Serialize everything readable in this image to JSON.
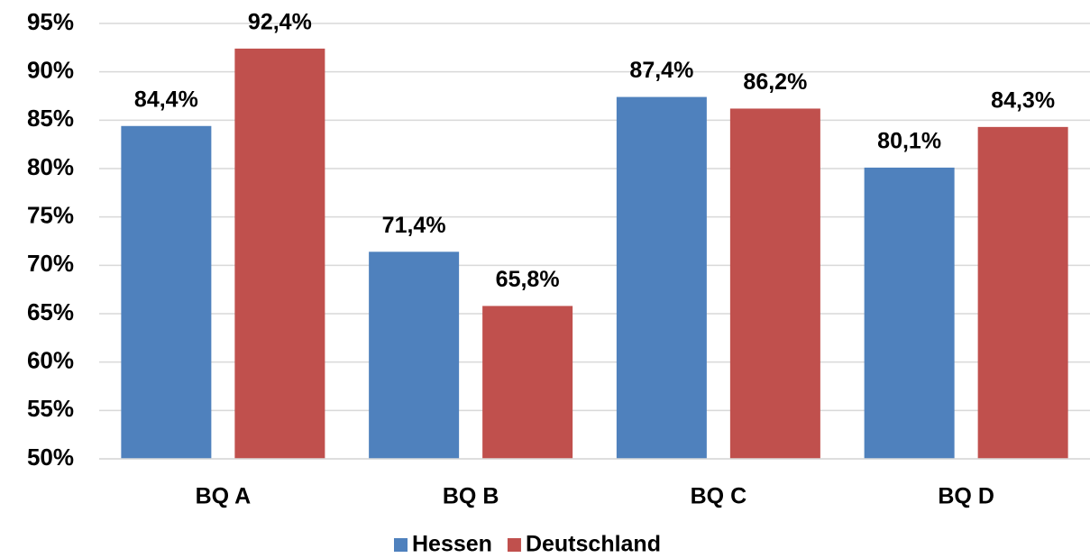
{
  "chart_data": {
    "type": "bar",
    "categories": [
      "BQ A",
      "BQ B",
      "BQ C",
      "BQ D"
    ],
    "series": [
      {
        "name": "Hessen",
        "color": "#4f81bd",
        "values": [
          84.4,
          71.4,
          87.4,
          80.1
        ],
        "value_labels": [
          "84,4%",
          "71,4%",
          "87,4%",
          "80,1%"
        ]
      },
      {
        "name": "Deutschland",
        "color": "#c0504d",
        "values": [
          92.4,
          65.8,
          86.2,
          84.3
        ],
        "value_labels": [
          "92,4%",
          "65,8%",
          "86,2%",
          "84,3%"
        ]
      }
    ],
    "ylim": [
      50,
      95
    ],
    "yticks": [
      {
        "value": 50,
        "label": "50%"
      },
      {
        "value": 55,
        "label": "55%"
      },
      {
        "value": 60,
        "label": "60%"
      },
      {
        "value": 65,
        "label": "65%"
      },
      {
        "value": 70,
        "label": "70%"
      },
      {
        "value": 75,
        "label": "75%"
      },
      {
        "value": 80,
        "label": "80%"
      },
      {
        "value": 85,
        "label": "85%"
      },
      {
        "value": 90,
        "label": "90%"
      },
      {
        "value": 95,
        "label": "95%"
      }
    ],
    "grid": true
  }
}
